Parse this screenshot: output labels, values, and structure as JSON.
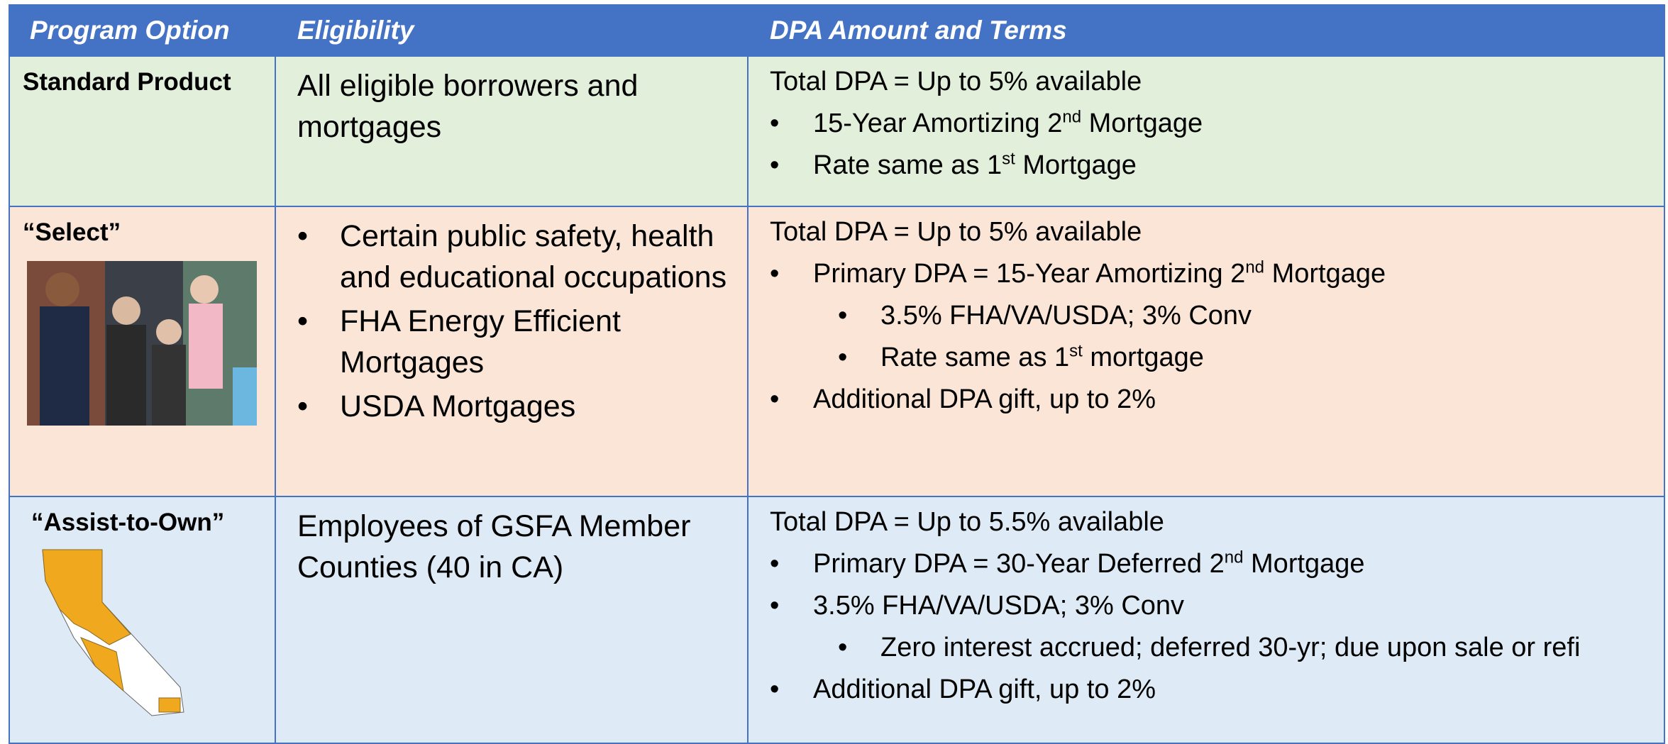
{
  "table": {
    "header": [
      "Program Option",
      "Eligibility",
      "DPA Amount and Terms"
    ],
    "rows": [
      {
        "program": "Standard Product",
        "eligibility": {
          "text": "All eligible borrowers and mortgages"
        },
        "terms": {
          "lead": "Total DPA = Up to 5% available",
          "items": [
            {
              "parts": [
                "15-Year Amortizing 2",
                {
                  "sup": "nd"
                },
                " Mortgage"
              ]
            },
            {
              "parts": [
                "Rate same as 1",
                {
                  "sup": "st"
                },
                " Mortgage"
              ]
            }
          ]
        }
      },
      {
        "program": "“Select”",
        "eligibility": {
          "bullets": [
            "Certain public safety, health and educational occupations",
            "FHA Energy Efficient Mortgages",
            "USDA Mortgages"
          ]
        },
        "terms": {
          "lead": "Total DPA = Up to 5% available",
          "items": [
            {
              "parts": [
                "Primary DPA = 15-Year Amortizing 2",
                {
                  "sup": "nd"
                },
                " Mortgage"
              ],
              "subitems": [
                {
                  "parts": [
                    "3.5% FHA/VA/USDA; 3% Conv"
                  ]
                },
                {
                  "parts": [
                    "Rate same as 1",
                    {
                      "sup": "st"
                    },
                    " mortgage"
                  ]
                }
              ]
            },
            {
              "parts": [
                "Additional DPA gift, up to 2%"
              ]
            }
          ]
        }
      },
      {
        "program": "“Assist-to-Own”",
        "eligibility": {
          "text": "Employees of GSFA Member Counties (40 in CA)"
        },
        "terms": {
          "lead": "Total DPA = Up to 5.5% available",
          "items": [
            {
              "parts": [
                "Primary DPA = 30-Year Deferred 2",
                {
                  "sup": "nd"
                },
                " Mortgage"
              ]
            },
            {
              "parts": [
                "3.5% FHA/VA/USDA; 3% Conv"
              ],
              "subitems": [
                {
                  "parts": [
                    "Zero interest accrued; deferred 30-yr; due upon sale or refi"
                  ]
                }
              ]
            },
            {
              "parts": [
                "Additional DPA gift, up to 2%"
              ]
            }
          ]
        }
      }
    ]
  }
}
